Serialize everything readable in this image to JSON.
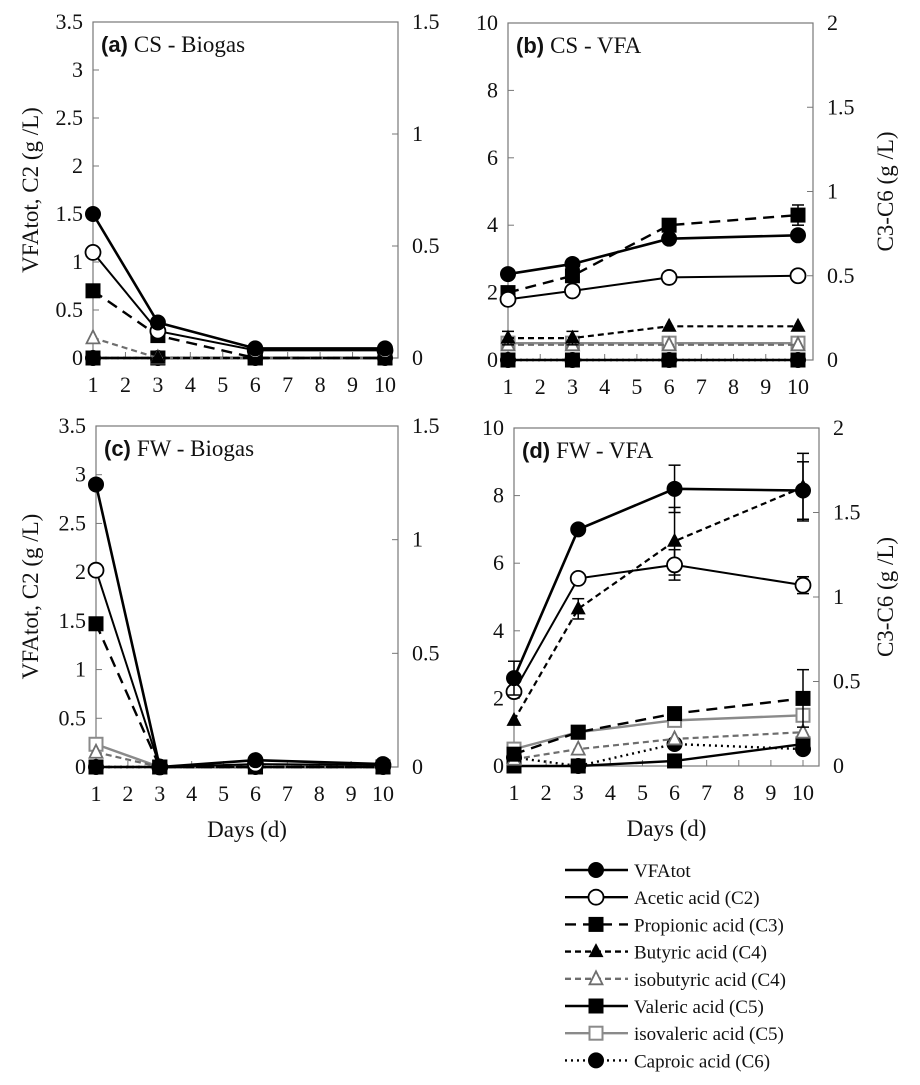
{
  "chart_data": {
    "type": "line",
    "x": [
      1,
      3,
      6,
      10
    ],
    "x_ticks": [
      1,
      2,
      3,
      4,
      5,
      6,
      7,
      8,
      9,
      10
    ],
    "xlabel": "Days (d)",
    "legend_placement": "bottom-right",
    "series_styles": [
      {
        "key": "vfatot",
        "name": "VFAtot",
        "color": "#000000",
        "dash": "solid",
        "marker": "filled-circle",
        "axis": "left"
      },
      {
        "key": "c2",
        "name": "Acetic acid (C2)",
        "color": "#000000",
        "dash": "solid",
        "marker": "open-circle",
        "axis": "left"
      },
      {
        "key": "c3",
        "name": "Propionic acid (C3)",
        "color": "#000000",
        "dash": "long-dash",
        "marker": "filled-square",
        "axis": "right"
      },
      {
        "key": "c4",
        "name": "Butyric acid (C4)",
        "color": "#000000",
        "dash": "short-dash",
        "marker": "filled-triangle",
        "axis": "right"
      },
      {
        "key": "ic4",
        "name": "isobutyric acid (C4)",
        "color": "#6e6e6e",
        "dash": "short-dash",
        "marker": "open-triangle",
        "axis": "right"
      },
      {
        "key": "c5",
        "name": "Valeric acid (C5)",
        "color": "#000000",
        "dash": "solid",
        "marker": "filled-square",
        "axis": "right"
      },
      {
        "key": "ic5",
        "name": "isovaleric acid (C5)",
        "color": "#8a8a8a",
        "dash": "solid",
        "marker": "open-square",
        "axis": "right"
      },
      {
        "key": "c6",
        "name": "Caproic acid (C6)",
        "color": "#000000",
        "dash": "dotted",
        "marker": "filled-circle",
        "axis": "right"
      }
    ],
    "panels": [
      {
        "id": "a",
        "label": "(a)",
        "title": "CS - Biogas",
        "ylabel_left": "VFAtot, C2 (g /L)",
        "ylabel_right": "",
        "show_xlabel": false,
        "ylim_left": [
          0,
          3.5
        ],
        "yticks_left": [
          "0",
          "0.5",
          "1",
          "1.5",
          "2",
          "2.5",
          "3",
          "3.5"
        ],
        "ylim_right": [
          0,
          1.5
        ],
        "yticks_right": [
          "0",
          "0.5",
          "1",
          "1.5"
        ],
        "series": {
          "vfatot": [
            1.5,
            0.37,
            0.1,
            0.1
          ],
          "c2": [
            1.1,
            0.28,
            0.08,
            0.08
          ],
          "c3": [
            0.3,
            0.1,
            0,
            0
          ],
          "c4": [
            0,
            0,
            0,
            0
          ],
          "ic4": [
            0.09,
            0,
            0,
            0
          ],
          "c5": [
            0,
            0,
            0,
            0
          ],
          "ic5": [
            0,
            0,
            0,
            0
          ],
          "c6": [
            0,
            0,
            0,
            0
          ]
        }
      },
      {
        "id": "b",
        "label": "(b)",
        "title": "CS - VFA",
        "ylabel_left": "",
        "ylabel_right": "C3-C6 (g /L)",
        "show_xlabel": false,
        "ylim_left": [
          0,
          10
        ],
        "yticks_left": [
          "0",
          "2",
          "4",
          "6",
          "8",
          "10"
        ],
        "ylim_right": [
          0,
          2
        ],
        "yticks_right": [
          "0",
          "0.5",
          "1",
          "1.5",
          "2"
        ],
        "series": {
          "vfatot": [
            2.55,
            2.85,
            3.6,
            3.7
          ],
          "c2": [
            1.8,
            2.05,
            2.45,
            2.5
          ],
          "c3": [
            0.4,
            0.5,
            0.8,
            0.86
          ],
          "c4": [
            0.13,
            0.13,
            0.2,
            0.2
          ],
          "ic4": [
            0.09,
            0.09,
            0.09,
            0.09
          ],
          "c5": [
            0,
            0,
            0,
            0
          ],
          "ic5": [
            0.1,
            0.1,
            0.1,
            0.1
          ],
          "c6": [
            0,
            0,
            0,
            0
          ]
        },
        "errors": {
          "c3": [
            0,
            0,
            0,
            0.06
          ],
          "c4": [
            0.04,
            0.04,
            0,
            0
          ]
        }
      },
      {
        "id": "c",
        "label": "(c)",
        "title": "FW - Biogas",
        "ylabel_left": "VFAtot, C2 (g /L)",
        "ylabel_right": "",
        "show_xlabel": true,
        "ylim_left": [
          0,
          3.5
        ],
        "yticks_left": [
          "0",
          "0.5",
          "1",
          "1.5",
          "2",
          "2.5",
          "3",
          "3.5"
        ],
        "ylim_right": [
          0,
          1.5
        ],
        "yticks_right": [
          "0",
          "0.5",
          "1",
          "1.5"
        ],
        "series": {
          "vfatot": [
            2.9,
            0,
            0.07,
            0.03
          ],
          "c2": [
            2.02,
            0,
            0.03,
            0.02
          ],
          "c3": [
            0.63,
            0,
            0,
            0
          ],
          "c4": [
            0,
            0,
            0,
            0
          ],
          "ic4": [
            0.065,
            0,
            0,
            0
          ],
          "c5": [
            0,
            0,
            0,
            0
          ],
          "ic5": [
            0.1,
            0,
            0,
            0
          ],
          "c6": [
            0,
            0,
            0,
            0
          ]
        }
      },
      {
        "id": "d",
        "label": "(d)",
        "title": "FW - VFA",
        "ylabel_left": "",
        "ylabel_right": "C3-C6 (g /L)",
        "show_xlabel": true,
        "ylim_left": [
          0,
          10
        ],
        "yticks_left": [
          "0",
          "2",
          "4",
          "6",
          "8",
          "10"
        ],
        "ylim_right": [
          0,
          2
        ],
        "yticks_right": [
          "0",
          "0.5",
          "1",
          "1.5",
          "2"
        ],
        "series": {
          "vfatot": [
            2.6,
            7.0,
            8.2,
            8.15
          ],
          "c2": [
            2.2,
            5.55,
            5.95,
            5.35
          ],
          "c3": [
            0.07,
            0.2,
            0.31,
            0.4
          ],
          "c4": [
            0.27,
            0.93,
            1.33,
            1.65
          ],
          "ic4": [
            0.04,
            0.1,
            0.16,
            0.2
          ],
          "c5": [
            0,
            0,
            0.03,
            0.13
          ],
          "ic5": [
            0.1,
            0.2,
            0.27,
            0.3
          ],
          "c6": [
            0.05,
            0,
            0.13,
            0.1
          ]
        },
        "errors": {
          "vfatot": [
            0.5,
            0,
            0.7,
            0.85
          ],
          "c2": [
            0,
            0,
            0.45,
            0.25
          ],
          "c3": [
            0,
            0,
            0,
            0.17
          ],
          "c4": [
            0,
            0.06,
            0.2,
            0.2
          ]
        }
      }
    ]
  }
}
